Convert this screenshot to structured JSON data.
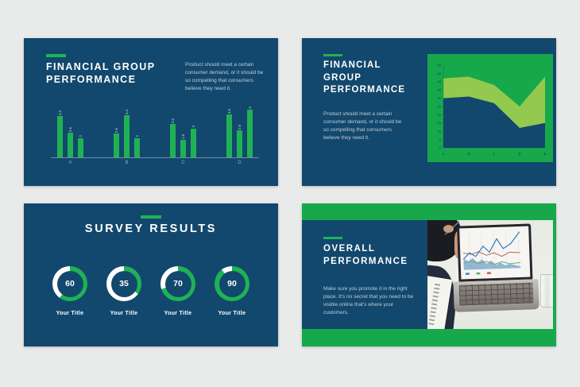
{
  "canvas": {
    "background": "#e9eaea"
  },
  "colors": {
    "slide_navy": "#12486d",
    "bright_green": "#17a84b",
    "accent_green": "#1fb254",
    "light_green_series": "#93c94f",
    "body_text": "#c2cdd6",
    "white": "#ffffff"
  },
  "slides": [
    {
      "id": "financial-group-performance-bars",
      "title": "FINANCIAL GROUP PERFORMANCE",
      "body": "Product should meet a certain consumer demand, or it should be so compelling that consumers believe they need it."
    },
    {
      "id": "financial-group-performance-area",
      "title": "FINANCIAL GROUP PERFORMANCE",
      "body": "Product should meet a certain consumer demand, or it should be so compelling that consumers believe they need it."
    },
    {
      "id": "survey-results",
      "title": "SURVEY RESULTS"
    },
    {
      "id": "overall-performance",
      "title": "OVERALL PERFORMANCE",
      "body": "Make sure you promote it in the right place. It's no secret that you need to be visible online that's where your customers."
    }
  ],
  "chart_data": [
    {
      "type": "bar",
      "title": "FINANCIAL GROUP PERFORMANCE",
      "categories": [
        "A",
        "B",
        "C",
        "D"
      ],
      "series": [
        {
          "values": [
            4.3,
            2.5,
            3.5,
            4.5
          ]
        },
        {
          "values": [
            2.6,
            4.4,
            1.8,
            2.8
          ]
        },
        {
          "values": [
            2,
            2,
            3,
            5
          ]
        }
      ],
      "ylim": [
        0,
        5
      ],
      "bar_color": "#1fb254",
      "value_labels": "rotated-vertical",
      "grid": false,
      "legend": false
    },
    {
      "type": "area",
      "title": "FINANCIAL GROUP PERFORMANCE",
      "x": [
        "A",
        "B",
        "C",
        "D",
        "E"
      ],
      "series": [
        {
          "values": [
            42,
            43,
            38,
            25,
            43
          ],
          "color": "#93c94f"
        },
        {
          "values": [
            30,
            31,
            27,
            12,
            15
          ],
          "color": "#12486d"
        }
      ],
      "ylim": [
        0,
        50
      ],
      "ytick_step": 5,
      "background": "#17a84b",
      "grid": false,
      "legend": false
    },
    {
      "type": "donut",
      "title": "SURVEY RESULTS",
      "items": [
        {
          "value": 60,
          "label": "Your Title"
        },
        {
          "value": 35,
          "label": "Your Title"
        },
        {
          "value": 70,
          "label": "Your Title"
        },
        {
          "value": 90,
          "label": "Your Title"
        }
      ],
      "max": 100,
      "ring_color": "#1fb254",
      "track_color": "#ffffff"
    }
  ]
}
